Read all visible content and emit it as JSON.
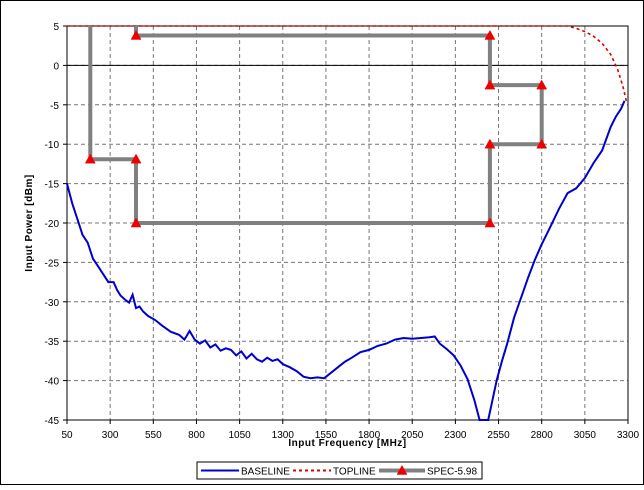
{
  "chart_data": {
    "type": "line",
    "title": "",
    "xlabel": "Input Frequency [MHz]",
    "ylabel": "Input Power [dBm]",
    "xlim": [
      50,
      3300
    ],
    "ylim": [
      -45,
      5
    ],
    "xticks": [
      50,
      300,
      550,
      800,
      1050,
      1300,
      1550,
      1800,
      2050,
      2300,
      2550,
      2800,
      3050,
      3300
    ],
    "yticks": [
      5,
      0,
      -5,
      -10,
      -15,
      -20,
      -25,
      -30,
      -35,
      -40,
      -45
    ],
    "grid": true,
    "legend_placement": "bottom-center",
    "series": [
      {
        "name": "BASELINE",
        "color": "#0000cc",
        "style": "solid",
        "marker": "none",
        "x": [
          50,
          80,
          110,
          140,
          170,
          200,
          230,
          260,
          290,
          320,
          340,
          360,
          390,
          410,
          430,
          450,
          470,
          490,
          520,
          560,
          600,
          650,
          700,
          730,
          760,
          790,
          820,
          850,
          880,
          910,
          940,
          970,
          1000,
          1030,
          1060,
          1090,
          1120,
          1150,
          1180,
          1210,
          1240,
          1270,
          1300,
          1340,
          1380,
          1420,
          1460,
          1500,
          1540,
          1580,
          1620,
          1660,
          1700,
          1750,
          1800,
          1850,
          1900,
          1950,
          2000,
          2050,
          2100,
          2150,
          2180,
          2210,
          2250,
          2290,
          2330,
          2370,
          2410,
          2440,
          2470,
          2490,
          2510,
          2540,
          2570,
          2600,
          2640,
          2680,
          2720,
          2760,
          2800,
          2850,
          2900,
          2950,
          3000,
          3050,
          3100,
          3150,
          3200,
          3230,
          3260,
          3280
        ],
        "y": [
          -15,
          -17.5,
          -19.5,
          -21.5,
          -22.5,
          -24.5,
          -25.5,
          -26.5,
          -27.5,
          -27.5,
          -28.5,
          -29.2,
          -29.8,
          -30.1,
          -29.1,
          -30.8,
          -30.6,
          -31.2,
          -31.8,
          -32.3,
          -33,
          -33.8,
          -34.2,
          -34.8,
          -33.7,
          -34.8,
          -35.3,
          -34.9,
          -35.8,
          -35.4,
          -36.2,
          -35.9,
          -36.1,
          -36.8,
          -36.3,
          -37.2,
          -36.6,
          -37.3,
          -37.6,
          -37.1,
          -37.5,
          -37.3,
          -37.9,
          -38.3,
          -38.8,
          -39.5,
          -39.7,
          -39.6,
          -39.7,
          -39,
          -38.3,
          -37.6,
          -37.1,
          -36.4,
          -36.1,
          -35.6,
          -35.3,
          -34.8,
          -34.6,
          -34.7,
          -34.6,
          -34.5,
          -34.4,
          -35.3,
          -36,
          -36.8,
          -38.1,
          -39.8,
          -42.5,
          -45,
          -45,
          -45,
          -43,
          -39.9,
          -37.5,
          -35.3,
          -32,
          -29.5,
          -27,
          -24.7,
          -22.7,
          -20.5,
          -18.2,
          -16.2,
          -15.6,
          -14.3,
          -12.4,
          -10.8,
          -7.8,
          -6.5,
          -5.5,
          -4.5
        ]
      },
      {
        "name": "TOPLINE",
        "color": "#dd0000",
        "style": "dashed",
        "marker": "none",
        "x": [
          50,
          300,
          800,
          1300,
          1800,
          2300,
          2800,
          2950,
          3000,
          3050,
          3100,
          3150,
          3200,
          3240,
          3270,
          3290
        ],
        "y": [
          5,
          5,
          5,
          5,
          5,
          5,
          5,
          5,
          4.7,
          4.3,
          3.7,
          2.8,
          1.4,
          -0.5,
          -2.6,
          -4.5
        ]
      },
      {
        "name": "SPEC-5.98",
        "color": "#808080",
        "marker_color": "#ee0000",
        "style": "solid",
        "marker": "triangle",
        "segments": [
          {
            "x": [
              185,
              185,
              185
            ],
            "y": [
              5,
              -11.9,
              -11.9
            ]
          },
          {
            "x": [
              185,
              450,
              450,
              450
            ],
            "y": [
              -11.9,
              -11.9,
              -20,
              -20
            ]
          },
          {
            "x": [
              450,
              2500
            ],
            "y": [
              -20,
              -20
            ]
          },
          {
            "x": [
              2500,
              2500,
              2500,
              2800,
              2800,
              2800
            ],
            "y": [
              -20,
              -10,
              -10,
              -10,
              -10,
              -10
            ]
          },
          {
            "x": [
              2800,
              2800
            ],
            "y": [
              -10,
              -2.5
            ]
          },
          {
            "x": [
              2800,
              2500,
              2500,
              2500
            ],
            "y": [
              -2.5,
              -2.5,
              -2.5,
              3.8
            ]
          },
          {
            "x": [
              2500,
              450,
              450
            ],
            "y": [
              3.8,
              3.8,
              5
            ]
          }
        ],
        "markers": [
          {
            "x": 185,
            "y": -11.9
          },
          {
            "x": 450,
            "y": -11.9
          },
          {
            "x": 450,
            "y": -20
          },
          {
            "x": 2500,
            "y": -20
          },
          {
            "x": 2500,
            "y": -10
          },
          {
            "x": 2800,
            "y": -10
          },
          {
            "x": 2800,
            "y": -2.5
          },
          {
            "x": 2500,
            "y": -2.5
          },
          {
            "x": 2500,
            "y": 3.8
          },
          {
            "x": 450,
            "y": 3.8
          }
        ]
      }
    ]
  }
}
